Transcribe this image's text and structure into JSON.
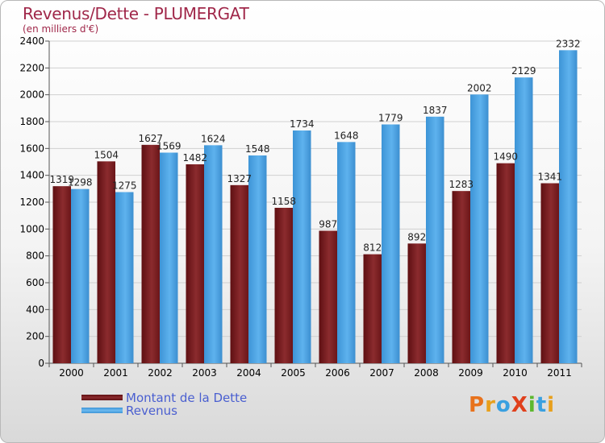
{
  "chart_data": {
    "type": "bar",
    "title": "Revenus/Dette - PLUMERGAT",
    "subtitle": "(en milliers d'€)",
    "categories": [
      "2000",
      "2001",
      "2002",
      "2003",
      "2004",
      "2005",
      "2006",
      "2007",
      "2008",
      "2009",
      "2010",
      "2011"
    ],
    "series": [
      {
        "name": "Montant de la Dette",
        "color": "#7a1e1e",
        "values": [
          1319,
          1504,
          1627,
          1482,
          1327,
          1158,
          987,
          812,
          892,
          1283,
          1490,
          1341
        ]
      },
      {
        "name": "Revenus",
        "color": "#4da6e8",
        "values": [
          1298,
          1275,
          1569,
          1624,
          1548,
          1734,
          1648,
          1779,
          1837,
          2002,
          2129,
          2332
        ]
      }
    ],
    "ylim": [
      0,
      2400
    ],
    "yticks": [
      0,
      200,
      400,
      600,
      800,
      1000,
      1200,
      1400,
      1600,
      1800,
      2000,
      2200,
      2400
    ],
    "grid": true,
    "legend": "bottom-left"
  },
  "logo": {
    "text": "ProXiti",
    "letters": [
      {
        "ch": "P",
        "color": "#e8721c"
      },
      {
        "ch": "r",
        "color": "#e8a01c"
      },
      {
        "ch": "o",
        "color": "#3aa0e0"
      },
      {
        "ch": "X",
        "color": "#e0401c"
      },
      {
        "ch": "i",
        "color": "#5cb82e"
      },
      {
        "ch": "t",
        "color": "#3aa0e0"
      },
      {
        "ch": "i",
        "color": "#e8a01c"
      }
    ]
  }
}
